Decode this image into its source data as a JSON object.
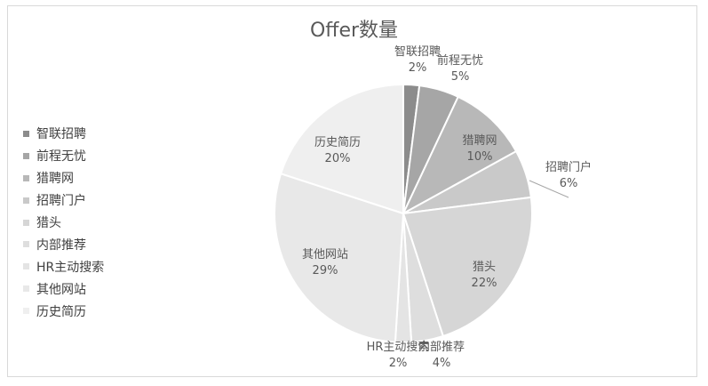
{
  "chart_data": {
    "type": "pie",
    "title": "Offer数量",
    "legend_position": "left",
    "slices": [
      {
        "label": "智联招聘",
        "value": 2,
        "percent_label": "2%",
        "color": "#8c8c8c"
      },
      {
        "label": "前程无忧",
        "value": 5,
        "percent_label": "5%",
        "color": "#a6a6a6"
      },
      {
        "label": "猎聘网",
        "value": 10,
        "percent_label": "10%",
        "color": "#b8b8b8"
      },
      {
        "label": "招聘门户",
        "value": 6,
        "percent_label": "6%",
        "color": "#c9c9c9"
      },
      {
        "label": "猎头",
        "value": 22,
        "percent_label": "22%",
        "color": "#d6d6d6"
      },
      {
        "label": "内部推荐",
        "value": 4,
        "percent_label": "4%",
        "color": "#dedede"
      },
      {
        "label": "HR主动搜索",
        "value": 2,
        "percent_label": "2%",
        "color": "#e4e4e4"
      },
      {
        "label": "其他网站",
        "value": 29,
        "percent_label": "29%",
        "color": "#e8e8e8"
      },
      {
        "label": "历史简历",
        "value": 20,
        "percent_label": "20%",
        "color": "#efefef"
      }
    ]
  }
}
